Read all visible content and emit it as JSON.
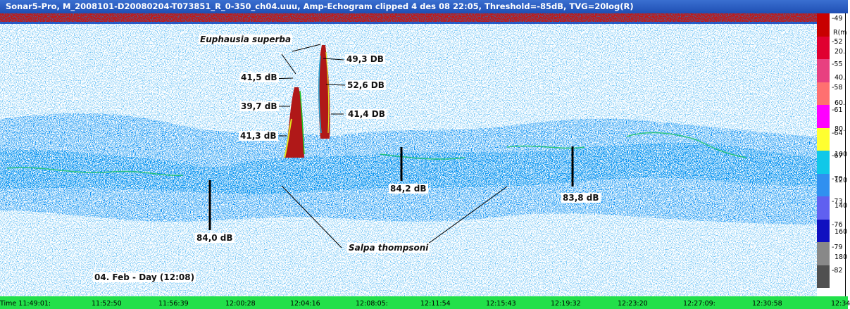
{
  "window": {
    "title": "Sonar5-Pro, M_2008101-D20080204-T073851_R_0-350_ch04.uuu, Amp-Echogram clipped 4 des 08 22:05, Threshold=-85dB, TVG=20log(R)"
  },
  "colorbar": {
    "values": [
      "-49",
      "-52",
      "-55",
      "-58",
      "-61",
      "-64",
      "-67",
      "-70",
      "-73",
      "-76",
      "-79",
      "-82"
    ],
    "colors": [
      "#c80000",
      "#e00030",
      "#e84080",
      "#ff7070",
      "#ff00ff",
      "#ffff30",
      "#10c8e8",
      "#3090f0",
      "#6060f0",
      "#1010c0",
      "#888888",
      "#505050"
    ],
    "range_header": "R(m",
    "range_ticks": [
      "20.",
      "40.",
      "60.",
      "80.",
      "100",
      "120",
      "140",
      "160",
      "180"
    ]
  },
  "time_axis": {
    "labels": [
      "Time 11:49:01:",
      "11:52:50",
      "11:56:39",
      "12:00:28",
      "12:04:16",
      "12:08:05:",
      "12:11:54",
      "12:15:43",
      "12:19:32",
      "12:23:20",
      "12:27:09:",
      "12:30:58",
      "12:34"
    ]
  },
  "annotations": {
    "species_euphausia": "Euphausia superba",
    "species_salpa": "Salpa thompsoni",
    "day_label": "04. Feb - Day (12:08)",
    "db": [
      "41,5 dB",
      "39,7 dB",
      "41,3 dB",
      "49,3 DB",
      "52,6 DB",
      "41,4 DB",
      "84,2 dB",
      "84,0 dB",
      "83,8 dB"
    ]
  }
}
